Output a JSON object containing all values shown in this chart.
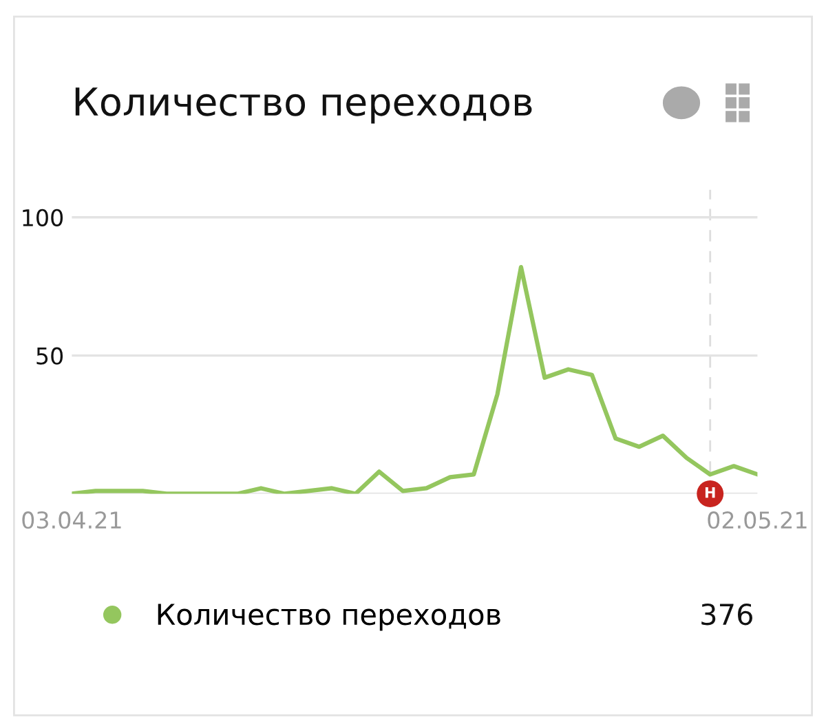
{
  "chart_data": {
    "type": "line",
    "title": "Количество переходов",
    "x": [
      "2021-04-03",
      "2021-04-04",
      "2021-04-05",
      "2021-04-06",
      "2021-04-07",
      "2021-04-08",
      "2021-04-09",
      "2021-04-10",
      "2021-04-11",
      "2021-04-12",
      "2021-04-13",
      "2021-04-14",
      "2021-04-15",
      "2021-04-16",
      "2021-04-17",
      "2021-04-18",
      "2021-04-19",
      "2021-04-20",
      "2021-04-21",
      "2021-04-22",
      "2021-04-23",
      "2021-04-24",
      "2021-04-25",
      "2021-04-26",
      "2021-04-27",
      "2021-04-28",
      "2021-04-29",
      "2021-04-30",
      "2021-05-01",
      "2021-05-02"
    ],
    "series": [
      {
        "name": "Количество переходов",
        "color": "#94c65e",
        "values": [
          0,
          1,
          1,
          1,
          0,
          0,
          0,
          0,
          2,
          0,
          1,
          2,
          0,
          8,
          1,
          2,
          6,
          7,
          36,
          82,
          42,
          45,
          43,
          20,
          17,
          21,
          13,
          7,
          10,
          7
        ]
      }
    ],
    "xlim": [
      "2021-04-03",
      "2021-05-02"
    ],
    "xticks": [
      {
        "value": "2021-04-03",
        "label": "03.04.21"
      },
      {
        "value": "2021-05-02",
        "label": "02.05.21"
      }
    ],
    "ylim": [
      0,
      110
    ],
    "yticks": [
      {
        "value": 0,
        "label": null
      },
      50,
      100
    ],
    "grid": "y",
    "legend": "bottom",
    "marker": "none",
    "line_style": "solid",
    "ref_lines": [
      {
        "axis": "x",
        "value": "2021-04-30",
        "color": "#dddddd",
        "line_style": "dashed"
      }
    ],
    "annotations": [
      {
        "text": "Н",
        "x": "2021-04-30",
        "y": 0
      },
      "376"
    ]
  }
}
